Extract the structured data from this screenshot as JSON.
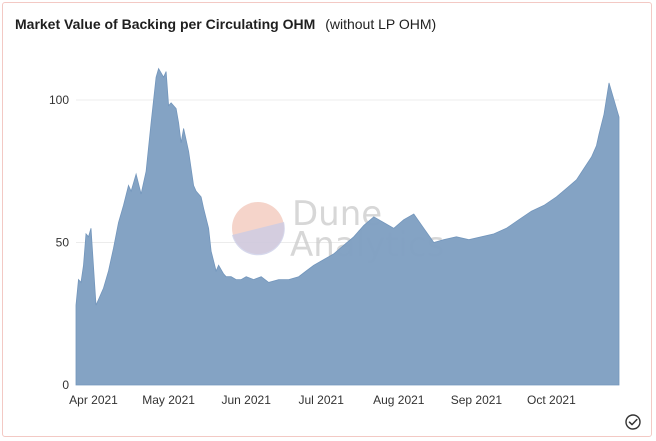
{
  "header": {
    "title": "Market Value of Backing per Circulating OHM",
    "subtitle": "(without LP OHM)"
  },
  "watermark": {
    "line1": "Dune",
    "line2": "Analytics"
  },
  "icons": {
    "status": "check-circle-icon"
  },
  "colors": {
    "area": "#7f9fc2",
    "gridline": "#ececec",
    "border": "#f3c9c4"
  },
  "chart_data": {
    "type": "area",
    "title": "Market Value of Backing per Circulating OHM",
    "subtitle": "(without LP OHM)",
    "xlabel": "",
    "ylabel": "",
    "ylim": [
      0,
      100
    ],
    "yticks": [
      0,
      50,
      100
    ],
    "grid": true,
    "legend": "none",
    "x_ticks": [
      "Apr 2021",
      "May 2021",
      "Jun 2021",
      "Jul 2021",
      "Aug 2021",
      "Sep 2021",
      "Oct 2021"
    ],
    "series": [
      {
        "x": [
          "2021-03-25",
          "2021-03-26",
          "2021-03-27",
          "2021-03-28",
          "2021-03-29",
          "2021-03-30",
          "2021-03-31",
          "2021-04-02",
          "2021-04-03",
          "2021-04-05",
          "2021-04-07",
          "2021-04-09",
          "2021-04-11",
          "2021-04-13",
          "2021-04-15",
          "2021-04-16",
          "2021-04-18",
          "2021-04-20",
          "2021-04-22",
          "2021-04-24",
          "2021-04-26",
          "2021-04-27",
          "2021-04-29",
          "2021-04-30",
          "2021-05-01",
          "2021-05-02",
          "2021-05-04",
          "2021-05-05",
          "2021-05-06",
          "2021-05-07",
          "2021-05-09",
          "2021-05-11",
          "2021-05-12",
          "2021-05-14",
          "2021-05-15",
          "2021-05-17",
          "2021-05-18",
          "2021-05-20",
          "2021-05-21",
          "2021-05-23",
          "2021-05-24",
          "2021-05-26",
          "2021-05-28",
          "2021-05-30",
          "2021-06-01",
          "2021-06-04",
          "2021-06-07",
          "2021-06-10",
          "2021-06-14",
          "2021-06-18",
          "2021-06-22",
          "2021-06-25",
          "2021-06-28",
          "2021-07-02",
          "2021-07-06",
          "2021-07-10",
          "2021-07-14",
          "2021-07-18",
          "2021-07-22",
          "2021-07-26",
          "2021-07-30",
          "2021-08-03",
          "2021-08-07",
          "2021-08-11",
          "2021-08-15",
          "2021-08-19",
          "2021-08-24",
          "2021-08-29",
          "2021-09-03",
          "2021-09-08",
          "2021-09-13",
          "2021-09-18",
          "2021-09-23",
          "2021-09-28",
          "2021-10-03",
          "2021-10-07",
          "2021-10-11",
          "2021-10-14",
          "2021-10-17",
          "2021-10-19",
          "2021-10-20",
          "2021-10-22",
          "2021-10-24",
          "2021-10-26",
          "2021-10-28"
        ],
        "values": [
          28,
          37,
          36,
          42,
          53,
          52,
          55,
          28,
          30,
          34,
          40,
          48,
          57,
          63,
          70,
          68,
          74,
          67,
          75,
          92,
          108,
          111,
          108,
          110,
          98,
          99,
          97,
          92,
          85,
          90,
          82,
          70,
          68,
          66,
          62,
          55,
          47,
          40,
          42,
          39,
          38,
          38,
          37,
          37,
          38,
          37,
          38,
          36,
          37,
          37,
          38,
          40,
          42,
          44,
          46,
          49,
          52,
          56,
          59,
          57,
          55,
          58,
          60,
          55,
          50,
          51,
          52,
          51,
          52,
          53,
          55,
          58,
          61,
          63,
          66,
          69,
          72,
          76,
          80,
          84,
          88,
          95,
          106,
          100,
          94
        ]
      }
    ]
  }
}
